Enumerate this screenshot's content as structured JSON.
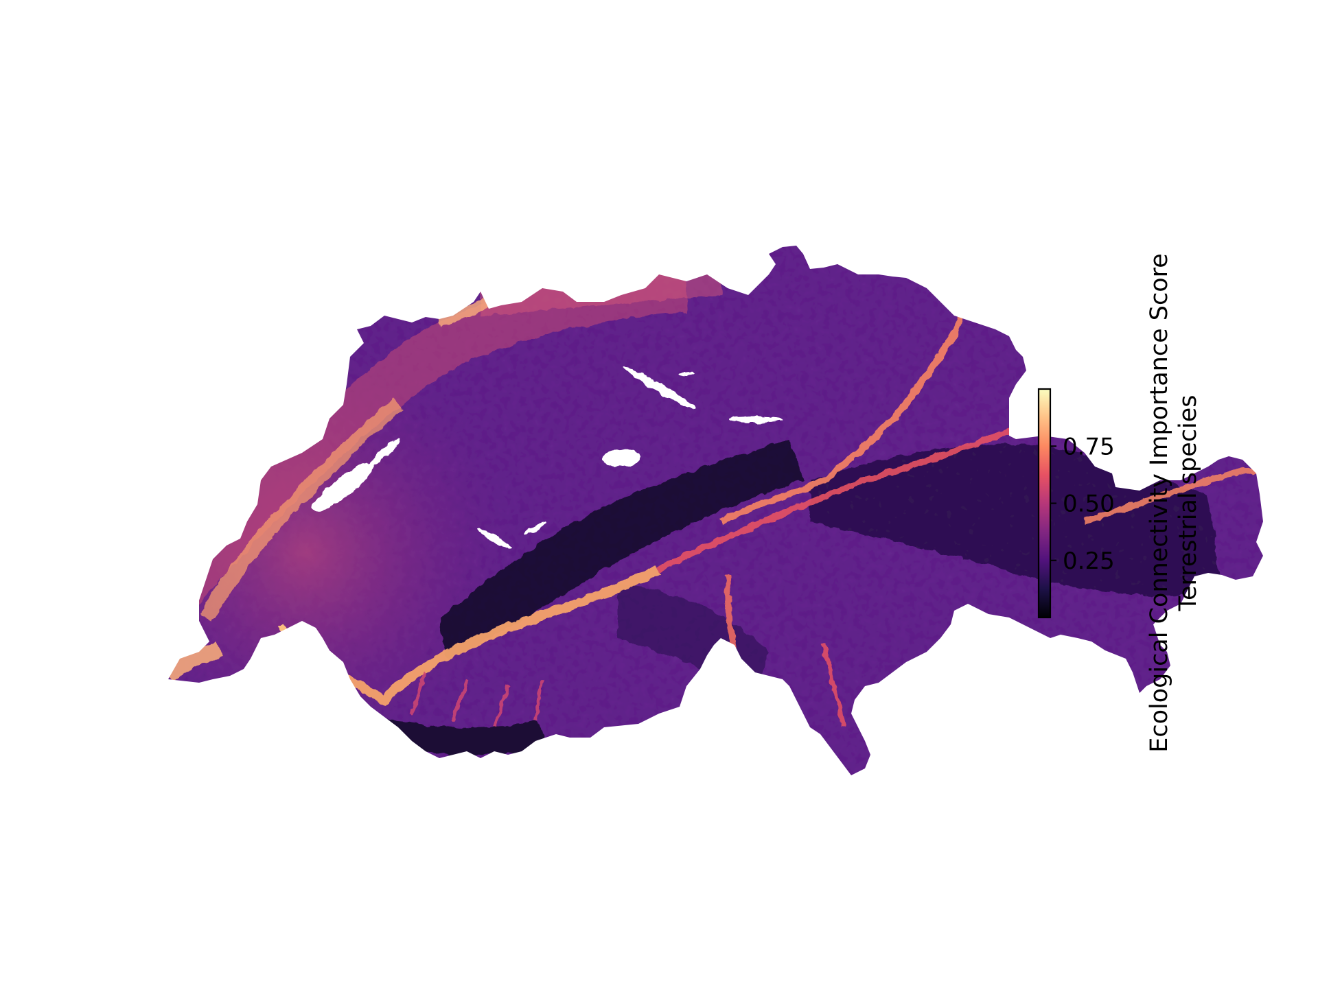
{
  "map": {
    "region": "Switzerland",
    "layer": "ecological-connectivity-importance",
    "colormap": "magma",
    "colormap_stops": [
      "#000004",
      "#1d1147",
      "#51127c",
      "#822681",
      "#b73779",
      "#e75263",
      "#fc8961",
      "#fec287",
      "#fcfdbf"
    ],
    "lakes_color": "#ffffff"
  },
  "colorbar": {
    "label_line1": "Ecological Connectivity Importance Score",
    "label_line2": "Terrestrial species",
    "min": 0.0,
    "max": 1.0,
    "ticks": [
      {
        "value": 0.25,
        "label": "0.25"
      },
      {
        "value": 0.5,
        "label": "0.50"
      },
      {
        "value": 0.75,
        "label": "0.75"
      }
    ]
  }
}
